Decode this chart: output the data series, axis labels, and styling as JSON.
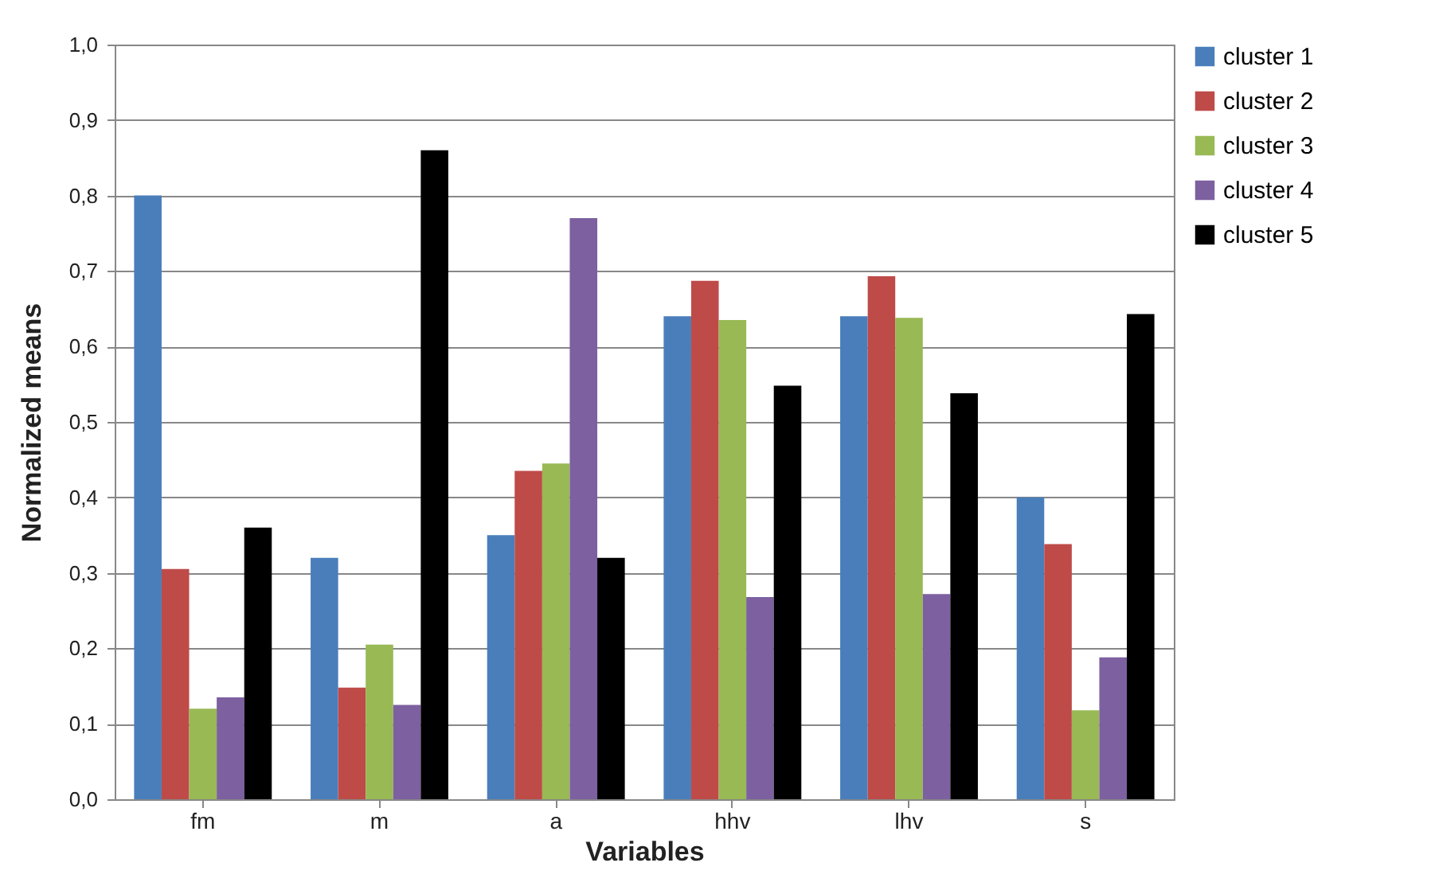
{
  "chart_data": {
    "type": "bar",
    "xlabel": "Variables",
    "ylabel": "Normalized means",
    "categories": [
      "fm",
      "m",
      "a",
      "hhv",
      "lhv",
      "s"
    ],
    "series": [
      {
        "name": "cluster 1",
        "color": "#4a7ebb",
        "values": [
          0.8,
          0.32,
          0.35,
          0.64,
          0.64,
          0.4
        ]
      },
      {
        "name": "cluster 2",
        "color": "#be4b48",
        "values": [
          0.305,
          0.148,
          0.435,
          0.687,
          0.693,
          0.338
        ]
      },
      {
        "name": "cluster 3",
        "color": "#98b954",
        "values": [
          0.12,
          0.205,
          0.445,
          0.635,
          0.638,
          0.118
        ]
      },
      {
        "name": "cluster 4",
        "color": "#7d60a0",
        "values": [
          0.135,
          0.125,
          0.77,
          0.268,
          0.272,
          0.188
        ]
      },
      {
        "name": "cluster 5",
        "color": "#000000",
        "values": [
          0.36,
          0.86,
          0.32,
          0.548,
          0.538,
          0.643
        ]
      }
    ],
    "ylim": [
      0,
      1
    ],
    "yticks": [
      {
        "value": 0,
        "label": "0,0"
      },
      {
        "value": 0.1,
        "label": "0,1"
      },
      {
        "value": 0.2,
        "label": "0,2"
      },
      {
        "value": 0.3,
        "label": "0,3"
      },
      {
        "value": 0.4,
        "label": "0,4"
      },
      {
        "value": 0.5,
        "label": "0,5"
      },
      {
        "value": 0.6,
        "label": "0,6"
      },
      {
        "value": 0.7,
        "label": "0,7"
      },
      {
        "value": 0.8,
        "label": "0,8"
      },
      {
        "value": 0.9,
        "label": "0,9"
      },
      {
        "value": 1,
        "label": "1,0"
      }
    ],
    "grid": "y",
    "legend": "right"
  }
}
